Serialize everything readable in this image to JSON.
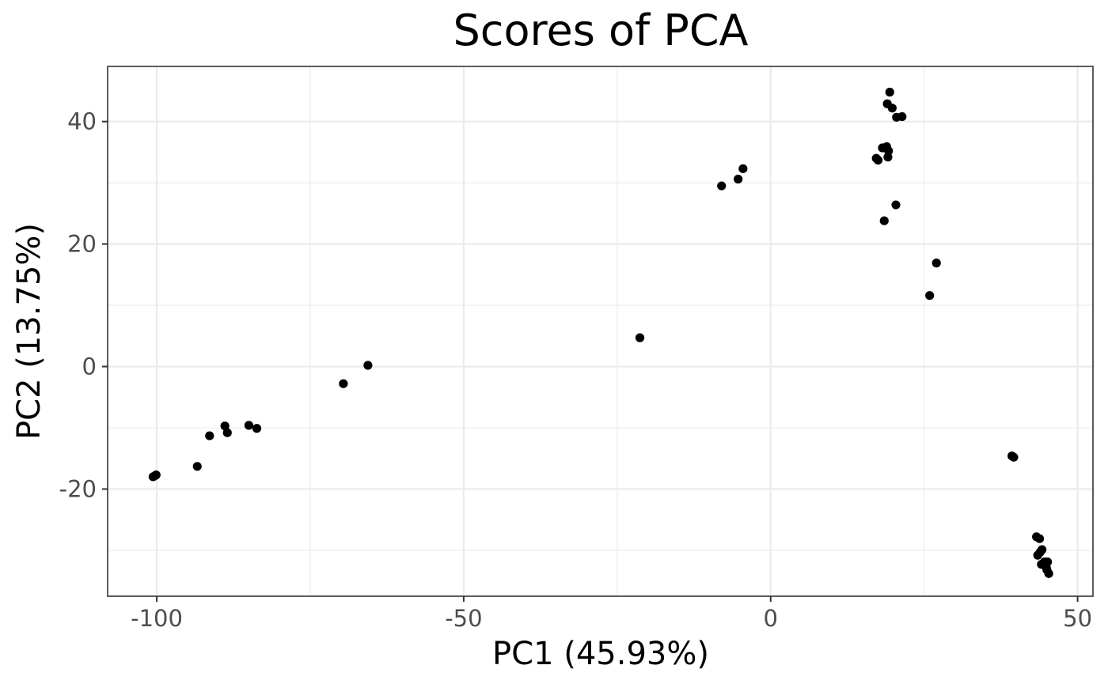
{
  "chart_data": {
    "type": "scatter",
    "title": "Scores of PCA",
    "xlabel": "PC1 (45.93%)",
    "ylabel": "PC2 (13.75%)",
    "xlim": [
      -108,
      52.5
    ],
    "ylim": [
      -37.5,
      49
    ],
    "xticks": [
      -100,
      -50,
      0,
      50
    ],
    "xtick_labels": [
      "-100",
      "-50",
      "0",
      "50"
    ],
    "xminor": [
      -75,
      -25,
      25
    ],
    "yticks": [
      -20,
      0,
      20,
      40
    ],
    "ytick_labels": [
      "-20",
      "0",
      "20",
      "40"
    ],
    "yminor": [
      -30,
      -10,
      10,
      30
    ],
    "grid": true,
    "points": [
      {
        "x": -100.6,
        "y": -18.0
      },
      {
        "x": -100.1,
        "y": -17.7
      },
      {
        "x": -100.4,
        "y": -17.9
      },
      {
        "x": -93.4,
        "y": -16.3
      },
      {
        "x": -91.4,
        "y": -11.3
      },
      {
        "x": -88.9,
        "y": -9.7
      },
      {
        "x": -88.5,
        "y": -10.8
      },
      {
        "x": -85.0,
        "y": -9.6
      },
      {
        "x": -83.7,
        "y": -10.1
      },
      {
        "x": -69.6,
        "y": -2.8
      },
      {
        "x": -65.6,
        "y": 0.2
      },
      {
        "x": -21.3,
        "y": 4.7
      },
      {
        "x": -8.0,
        "y": 29.5
      },
      {
        "x": -5.3,
        "y": 30.6
      },
      {
        "x": -4.5,
        "y": 32.3
      },
      {
        "x": 17.2,
        "y": 34.0
      },
      {
        "x": 17.5,
        "y": 33.7
      },
      {
        "x": 18.2,
        "y": 35.7
      },
      {
        "x": 18.5,
        "y": 23.8
      },
      {
        "x": 18.9,
        "y": 35.9
      },
      {
        "x": 19.1,
        "y": 34.2
      },
      {
        "x": 19.2,
        "y": 35.2
      },
      {
        "x": 19.0,
        "y": 42.9
      },
      {
        "x": 19.4,
        "y": 44.8
      },
      {
        "x": 19.8,
        "y": 42.2
      },
      {
        "x": 20.4,
        "y": 26.4
      },
      {
        "x": 20.5,
        "y": 40.7
      },
      {
        "x": 21.4,
        "y": 40.8
      },
      {
        "x": 25.9,
        "y": 11.6
      },
      {
        "x": 27.0,
        "y": 16.9
      },
      {
        "x": 39.3,
        "y": -14.6
      },
      {
        "x": 39.6,
        "y": -14.8
      },
      {
        "x": 43.3,
        "y": -27.8
      },
      {
        "x": 43.8,
        "y": -28.1
      },
      {
        "x": 43.5,
        "y": -30.8
      },
      {
        "x": 43.9,
        "y": -30.3
      },
      {
        "x": 44.2,
        "y": -29.9
      },
      {
        "x": 44.1,
        "y": -32.3
      },
      {
        "x": 44.6,
        "y": -31.9
      },
      {
        "x": 45.1,
        "y": -31.9
      },
      {
        "x": 44.9,
        "y": -32.8
      },
      {
        "x": 45.0,
        "y": -33.2
      },
      {
        "x": 45.3,
        "y": -33.8
      }
    ]
  }
}
